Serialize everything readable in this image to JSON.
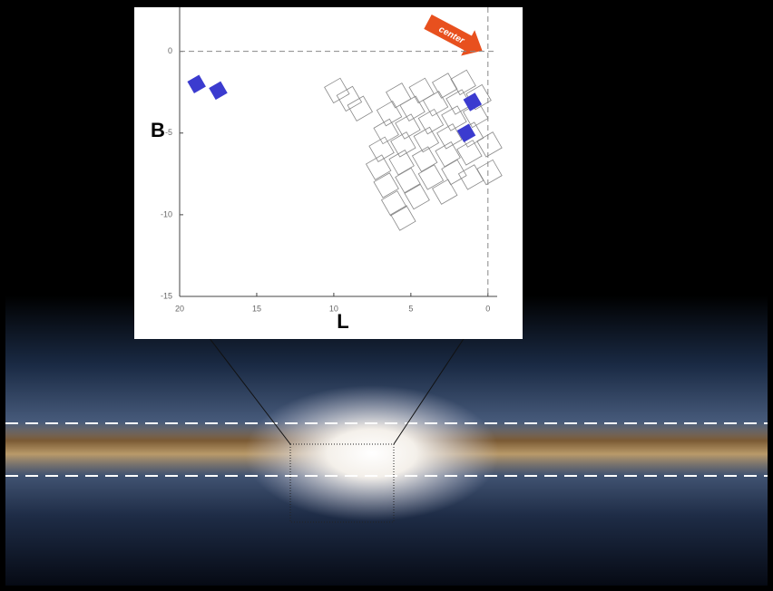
{
  "chart_data": {
    "type": "footprint",
    "x_label": "L",
    "y_label": "B",
    "annotation": "center",
    "xlim": [
      20,
      -0.6
    ],
    "ylim": [
      -15,
      2.7
    ],
    "xticks": [
      20,
      15,
      10,
      5,
      0
    ],
    "yticks": [
      0,
      -5,
      -10,
      -15
    ],
    "hlines": [
      0
    ],
    "vlines": [
      0
    ],
    "fields": {
      "color": "#888888",
      "x": [
        9.8,
        9.0,
        8.3,
        5.8,
        4.3,
        2.8,
        1.6,
        6.4,
        4.9,
        3.4,
        1.9,
        0.6,
        6.6,
        5.2,
        3.7,
        2.2,
        0.8,
        6.9,
        5.5,
        4.0,
        2.5,
        1.1,
        -0.1,
        7.1,
        5.6,
        4.1,
        2.6,
        1.2,
        -0.1,
        6.6,
        5.2,
        3.7,
        2.2,
        1.1,
        6.1,
        4.6,
        2.8,
        5.5
      ],
      "y": [
        -2.4,
        -2.9,
        -3.5,
        -2.7,
        -2.4,
        -2.1,
        -1.9,
        -3.8,
        -3.5,
        -3.2,
        -3.1,
        -2.8,
        -4.9,
        -4.6,
        -4.3,
        -4.1,
        -3.9,
        -6.0,
        -5.7,
        -5.4,
        -5.2,
        -5.1,
        -5.7,
        -7.1,
        -6.8,
        -6.6,
        -6.3,
        -6.2,
        -7.4,
        -8.2,
        -7.9,
        -7.7,
        -7.4,
        -7.7,
        -9.3,
        -8.9,
        -8.6,
        -10.2
      ]
    },
    "highlighted": {
      "color": "#3b3bcf",
      "x": [
        18.9,
        17.5,
        1.0,
        1.4
      ],
      "y": [
        -2.0,
        -2.4,
        -3.1,
        -5.0
      ]
    }
  }
}
